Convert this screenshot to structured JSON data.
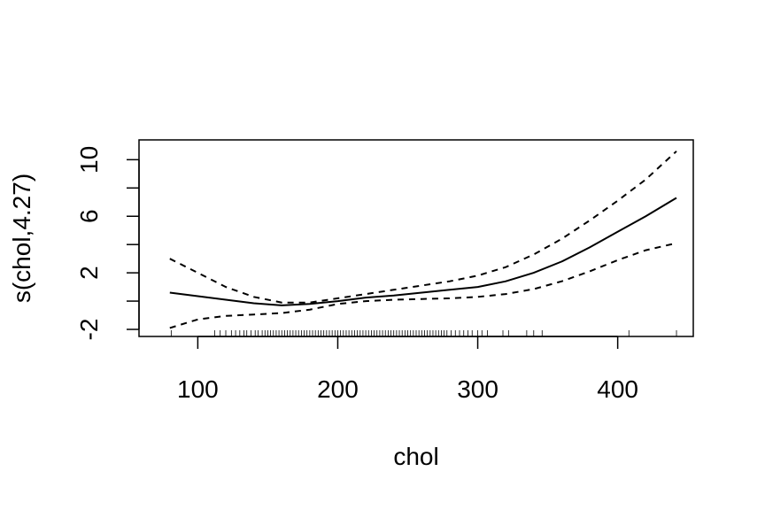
{
  "chart_data": {
    "type": "line",
    "title": "",
    "xlabel": "chol",
    "ylabel": "s(chol,4.27)",
    "xlim": [
      58,
      454
    ],
    "ylim": [
      -2.5,
      11.4
    ],
    "xticks": [
      100,
      200,
      300,
      400
    ],
    "xtick_labels": [
      "100",
      "200",
      "300",
      "400"
    ],
    "yticks": [
      -2,
      0,
      2,
      4,
      6,
      8,
      10
    ],
    "ytick_labels": [
      "-2",
      "",
      "2",
      "",
      "6",
      "",
      "10"
    ],
    "grid": false,
    "legend": "none",
    "series": [
      {
        "style": "solid",
        "x": [
          80,
          100,
          120,
          140,
          160,
          180,
          200,
          220,
          240,
          260,
          280,
          300,
          320,
          340,
          360,
          380,
          400,
          420,
          442
        ],
        "y": [
          0.6,
          0.35,
          0.1,
          -0.15,
          -0.3,
          -0.2,
          0.0,
          0.25,
          0.4,
          0.6,
          0.8,
          1.0,
          1.4,
          2.0,
          2.8,
          3.8,
          4.9,
          6.0,
          7.3
        ]
      },
      {
        "style": "dashed",
        "x": [
          80,
          100,
          120,
          140,
          160,
          180,
          200,
          220,
          240,
          260,
          280,
          300,
          320,
          340,
          360,
          380,
          400,
          420,
          442
        ],
        "y": [
          3.0,
          2.0,
          1.0,
          0.3,
          -0.1,
          -0.1,
          0.2,
          0.5,
          0.8,
          1.1,
          1.4,
          1.8,
          2.4,
          3.3,
          4.4,
          5.7,
          7.1,
          8.6,
          10.6
        ]
      },
      {
        "style": "dashed",
        "x": [
          80,
          100,
          120,
          140,
          160,
          180,
          200,
          220,
          240,
          260,
          280,
          300,
          320,
          340,
          360,
          380,
          400,
          420,
          442
        ],
        "y": [
          -1.9,
          -1.3,
          -1.05,
          -0.95,
          -0.85,
          -0.6,
          -0.2,
          0.0,
          0.1,
          0.15,
          0.2,
          0.3,
          0.5,
          0.85,
          1.4,
          2.1,
          2.9,
          3.6,
          4.1
        ]
      }
    ],
    "rug": [
      81,
      112,
      116,
      120,
      124,
      127,
      130,
      133,
      135,
      138,
      141,
      143,
      146,
      148,
      150,
      152,
      154,
      156,
      158,
      160,
      162,
      164,
      166,
      168,
      170,
      172,
      174,
      176,
      178,
      180,
      182,
      184,
      186,
      188,
      190,
      192,
      194,
      196,
      198,
      200,
      202,
      204,
      206,
      208,
      210,
      212,
      214,
      216,
      218,
      220,
      222,
      224,
      226,
      228,
      230,
      232,
      234,
      236,
      238,
      240,
      242,
      244,
      246,
      248,
      250,
      252,
      254,
      256,
      258,
      260,
      262,
      264,
      266,
      268,
      270,
      272,
      274,
      276,
      278,
      281,
      284,
      287,
      290,
      293,
      296,
      300,
      303,
      307,
      318,
      322,
      335,
      340,
      346,
      408,
      442
    ]
  }
}
